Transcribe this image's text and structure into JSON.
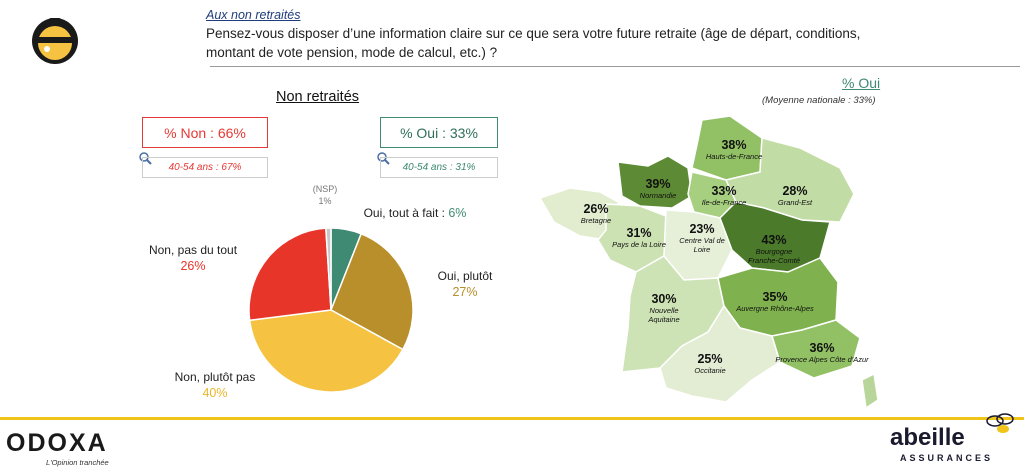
{
  "header": {
    "subtitle": "Aux non retraités",
    "question": "Pensez-vous disposer d’une information claire sur ce que sera votre future retraite (âge de départ, conditions, montant de vote pension, mode de calcul, etc.) ?"
  },
  "pie": {
    "title": "Non retraités",
    "summary_non": "% Non : 66%",
    "summary_oui": "% Oui : 33%",
    "sub_non": "40-54 ans : 67%",
    "sub_oui": "40-54 ans : 31%",
    "labels": {
      "nsp": "(NSP)",
      "nsp_pct": "1%",
      "oui_tout": "Oui, tout à fait : ",
      "oui_tout_pct": "6%",
      "oui_plutot": "Oui, plutôt",
      "oui_plutot_pct": "27%",
      "non_tout": "Non, pas du tout",
      "non_tout_pct": "26%",
      "non_plutot": "Non, plutôt pas",
      "non_plutot_pct": "40%"
    }
  },
  "map": {
    "title": "% Oui",
    "note": "(Moyenne nationale : 33%)"
  },
  "chart_data": [
    {
      "type": "pie",
      "title": "Non retraités",
      "categories": [
        "Oui, tout à fait",
        "Oui, plutôt",
        "Non, plutôt pas",
        "Non, pas du tout",
        "(NSP)"
      ],
      "values": [
        6,
        27,
        40,
        26,
        1
      ],
      "colors": [
        "#3e8a72",
        "#b98f2b",
        "#f5c242",
        "#e8352a",
        "#c8c8c8"
      ]
    },
    {
      "type": "map",
      "title": "% Oui",
      "regions": [
        {
          "name": "Hauts-de-France",
          "value": 38,
          "label": "38%"
        },
        {
          "name": "Normandie",
          "value": 39,
          "label": "39%"
        },
        {
          "name": "Ile-de-France",
          "value": 33,
          "label": "33%"
        },
        {
          "name": "Grand-Est",
          "value": 28,
          "label": "28%"
        },
        {
          "name": "Bretagne",
          "value": 26,
          "label": "26%"
        },
        {
          "name": "Pays de la Loire",
          "value": 31,
          "label": "31%"
        },
        {
          "name": "Centre Val de Loire",
          "value": 23,
          "label": "23%"
        },
        {
          "name": "Bourgogne Franche-Comté",
          "value": 43,
          "label": "43%"
        },
        {
          "name": "Nouvelle Aquitaine",
          "value": 30,
          "label": "30%"
        },
        {
          "name": "Auvergne Rhône-Alpes",
          "value": 35,
          "label": "35%"
        },
        {
          "name": "Occitanie",
          "value": 25,
          "label": "25%"
        },
        {
          "name": "Provence Alpes Côte d'Azur",
          "value": 36,
          "label": "36%"
        }
      ]
    }
  ],
  "brands": {
    "odoxa": "ODOXA",
    "odoxa_tag": "L'Opinion tranchée",
    "abeille": "abeille",
    "abeille_sub": "ASSURANCES"
  }
}
